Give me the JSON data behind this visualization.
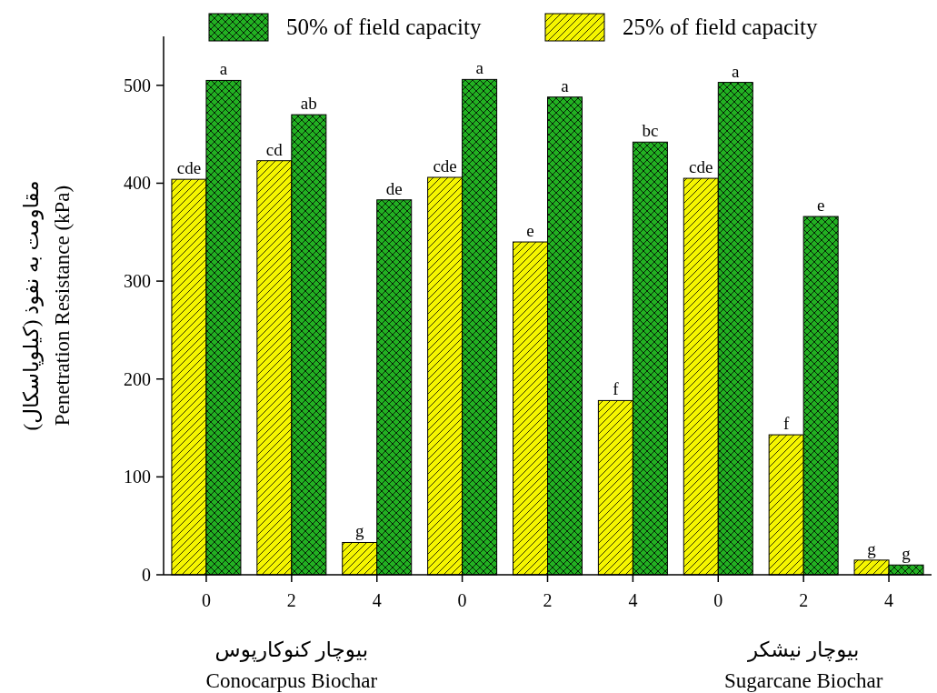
{
  "chart_data": {
    "type": "bar",
    "ylabel": "مقاومت به نفوذ (کیلوپاسکال)\nPenetration Resistance (kPa)",
    "categories": [
      "0",
      "2",
      "4",
      "0",
      "2",
      "4",
      "0",
      "2",
      "4"
    ],
    "series": [
      {
        "name": "50% of field capacity",
        "color": "#22b022",
        "values": [
          505,
          470,
          383,
          506,
          488,
          442,
          503,
          366,
          10
        ],
        "value_labels": [
          "a",
          "ab",
          "de",
          "a",
          "a",
          "bc",
          "a",
          "e",
          "g"
        ]
      },
      {
        "name": "25% of field capacity",
        "color": "#f5f500",
        "values": [
          404,
          423,
          33,
          406,
          340,
          178,
          405,
          143,
          15
        ],
        "value_labels": [
          "cde",
          "cd",
          "g",
          "cde",
          "e",
          "f",
          "cde",
          "f",
          "g"
        ]
      }
    ],
    "ylim": [
      0,
      550
    ],
    "yticks": [
      0,
      100,
      200,
      300,
      400,
      500
    ],
    "legend": "top",
    "annotations": [
      "بیوچار کنوکارپوس\nConocarpus Biochar",
      "بیوچار نیشکر\nSugarcane Biochar"
    ]
  }
}
